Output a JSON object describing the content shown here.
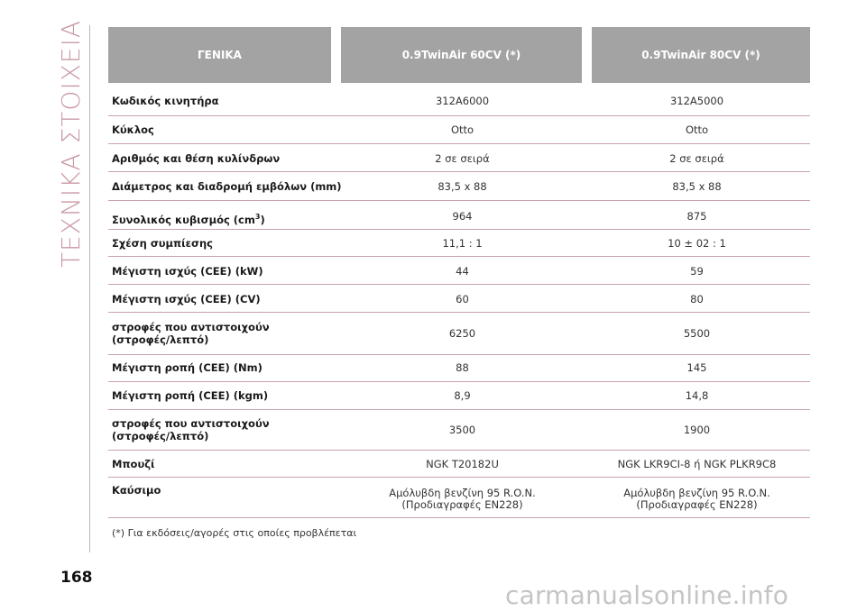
{
  "side_title": "ΤΕΧΝΙΚΑ ΣΤΟΙΧΕΙΑ",
  "header": {
    "col0": "ΓΕΝΙΚΑ",
    "col1": "0.9TwinAir 60CV (*)",
    "col2": "0.9TwinAir 80CV (*)"
  },
  "rows": [
    {
      "label": "Κωδικός κινητήρα",
      "v1": "312A6000",
      "v2": "312A5000"
    },
    {
      "label": "Κύκλος",
      "v1": "Otto",
      "v2": "Otto"
    },
    {
      "label": "Αριθμός και θέση κυλίνδρων",
      "v1": "2 σε σειρά",
      "v2": "2 σε σειρά"
    },
    {
      "label": "Διάμετρος και διαδρομή εμβόλων (mm)",
      "v1": "83,5 x 88",
      "v2": "83,5 x 88"
    },
    {
      "label": "Συνολικός κυβισμός (cm",
      "label_sup": "3",
      "label_suffix": ")",
      "v1": "964",
      "v2": "875"
    },
    {
      "label": "Σχέση συμπίεσης",
      "v1": "11,1 : 1",
      "v2": "10 ± 02 : 1"
    },
    {
      "label": "Μέγιστη ισχύς (CEE) (kW)",
      "v1": "44",
      "v2": "59"
    },
    {
      "label": "Μέγιστη ισχύς (CEE) (CV)",
      "v1": "60",
      "v2": "80"
    },
    {
      "label": "στροφές που αντιστοιχούν",
      "label2": "(στροφές/λεπτό)",
      "v1": "6250",
      "v2": "5500"
    },
    {
      "label": "Μέγιστη ροπή (CEE) (Nm)",
      "v1": "88",
      "v2": "145"
    },
    {
      "label": "Μέγιστη ροπή (CEE) (kgm)",
      "v1": "8,9",
      "v2": "14,8"
    },
    {
      "label": "στροφές που αντιστοιχούν",
      "label2": "(στροφές/λεπτό)",
      "v1": "3500",
      "v2": "1900"
    },
    {
      "label": "Μπουζί",
      "v1": "NGK T20182U",
      "v2": "NGK LKR9CI-8 ή NGK PLKR9C8"
    },
    {
      "label": "Καύσιμο",
      "v1": "Αμόλυβδη βενζίνη 95 R.O.N.",
      "v1b": "(Προδιαγραφές EN228)",
      "v2": "Αμόλυβδη βενζίνη 95 R.O.N.",
      "v2b": "(Προδιαγραφές EN228)"
    }
  ],
  "footnote": "(*) Για εκδόσεις/αγορές στις οποίες προβλέπεται",
  "page_number": "168",
  "watermark": "carmanualsonline.info"
}
